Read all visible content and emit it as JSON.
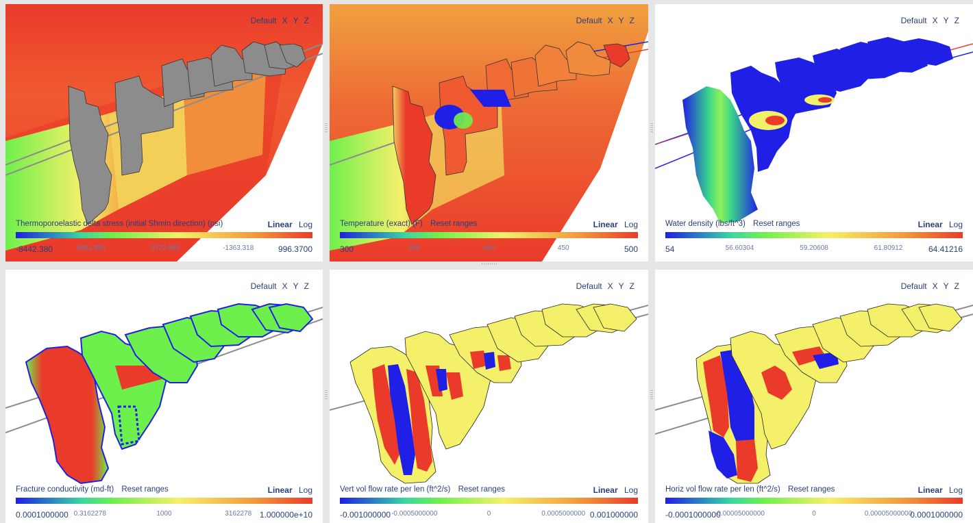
{
  "view_buttons": {
    "default": "Default",
    "x": "X",
    "y": "Y",
    "z": "Z"
  },
  "scale": {
    "linear": "Linear",
    "log": "Log"
  },
  "panels": [
    {
      "title": "Thermoporoelastic delta stress (initial Shmin direction) (psi)",
      "reset": "",
      "ticks": [
        "-8442.380",
        "-6082.950",
        "-3722.585",
        "-1363.318",
        "996.3700"
      ]
    },
    {
      "title": "Temperature (exact) (F)",
      "reset": "Reset ranges",
      "ticks": [
        "300",
        "350",
        "400",
        "450",
        "500"
      ]
    },
    {
      "title": "Water density (lbs/ft^3)",
      "reset": "Reset ranges",
      "ticks": [
        "54",
        "56.60304",
        "59.20608",
        "61.80912",
        "64.41216"
      ]
    },
    {
      "title": "Fracture conductivity (md-ft)",
      "reset": "Reset ranges",
      "ticks": [
        "0.0001000000",
        "0.3162278",
        "1000",
        "3162278",
        "1.000000e+10"
      ]
    },
    {
      "title": "Vert vol flow rate per len (ft^2/s)",
      "reset": "Reset ranges",
      "ticks": [
        "-0.001000000",
        "-0.0005000000",
        "0",
        "0.0005000000",
        "0.001000000"
      ]
    },
    {
      "title": "Horiz vol flow rate per len (ft^2/s)",
      "reset": "Reset ranges",
      "ticks": [
        "-0.0001000000",
        "-0.00005000000",
        "0",
        "0.00005000000",
        "0.0001000000"
      ]
    }
  ],
  "colors": {
    "blue": "#1f1fe6",
    "green": "#6ef04c",
    "yellow": "#f5f06a",
    "orange": "#f39a3c",
    "red": "#ea3b2a",
    "gray": "#8c8c8c",
    "accent_text": "#2a3f7a"
  }
}
